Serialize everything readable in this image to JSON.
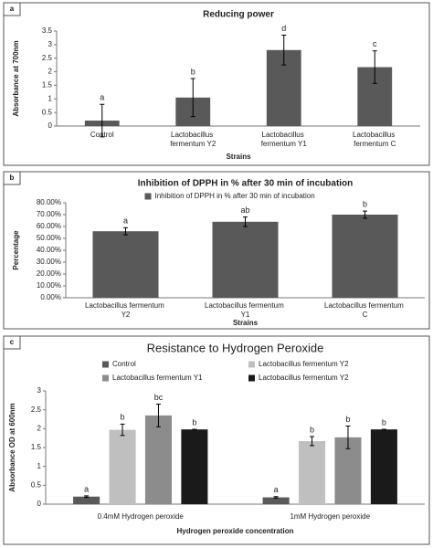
{
  "chart_data": [
    {
      "type": "bar",
      "panel_label": "a",
      "title": "Reducing power",
      "y_label": "Absorbance at 700nm",
      "x_label": "Strains",
      "categories": [
        "Control",
        "Lactobacillus fermentum Y2",
        "Lactobacillus fermentum Y1",
        "Lactobacillus fermentum C"
      ],
      "series": [
        {
          "color": "#595959",
          "values": [
            0.2,
            1.05,
            2.8,
            2.17
          ],
          "errors": [
            0.6,
            0.7,
            0.55,
            0.6
          ],
          "significance": [
            "a",
            "b",
            "d",
            "c"
          ]
        }
      ],
      "ylim": [
        0,
        3.5
      ],
      "yticks": [
        0,
        0.5,
        1,
        1.5,
        2,
        2.5,
        3,
        3.5
      ],
      "grid": false
    },
    {
      "type": "bar",
      "panel_label": "b",
      "title": "Inhibition of DPPH in % after 30 min of incubation",
      "y_label": "Percentage",
      "x_label": "Strains",
      "categories": [
        "Lactobacillus fermentum Y2",
        "Lactobacillus fermentum Y1",
        "Lactobacillus fermentum C"
      ],
      "series": [
        {
          "name": "Inhibition of DPPH in % after 30 min of incubation",
          "color": "#595959",
          "values": [
            56,
            64,
            70
          ],
          "errors": [
            3,
            4,
            3
          ],
          "significance": [
            "a",
            "ab",
            "b"
          ]
        }
      ],
      "ylim": [
        0,
        80
      ],
      "yticks": [
        {
          "value": 0,
          "label": "0.00%"
        },
        {
          "value": 10,
          "label": "10.00%"
        },
        {
          "value": 20,
          "label": "20.00%"
        },
        {
          "value": 30,
          "label": "30.00%"
        },
        {
          "value": 40,
          "label": "40.00%"
        },
        {
          "value": 50,
          "label": "50.00%"
        },
        {
          "value": 60,
          "label": "60.00%"
        },
        {
          "value": 70,
          "label": "70.00%"
        },
        {
          "value": 80,
          "label": "80.00%"
        }
      ],
      "grid": false,
      "legend": "top"
    },
    {
      "type": "bar",
      "panel_label": "c",
      "title": "Resistance to Hydrogen Peroxide",
      "y_label": "Absorbance OD at 600nm",
      "x_label": "Hydrogen peroxide concentration",
      "categories": [
        "0.4mM Hydrogen peroxide",
        "1mM Hydrogen peroxide"
      ],
      "series": [
        {
          "name": "Control",
          "color": "#595959",
          "values": [
            0.2,
            0.18
          ],
          "errors": [
            0.02,
            0.02
          ],
          "significance": [
            "a",
            "a"
          ]
        },
        {
          "name": "Lactobacillus fermentum Y2",
          "color": "#bfbfbf",
          "values": [
            1.97,
            1.67
          ],
          "errors": [
            0.15,
            0.12
          ],
          "significance": [
            "b",
            "b"
          ]
        },
        {
          "name": "Lactobacillus fermentum Y1",
          "color": "#8c8c8c",
          "values": [
            2.35,
            1.77
          ],
          "errors": [
            0.3,
            0.3
          ],
          "significance": [
            "bc",
            "b"
          ]
        },
        {
          "name": "Lactobacillus fermentum Y2",
          "color": "#1a1a1a",
          "values": [
            1.98,
            1.98
          ],
          "errors": [
            0,
            0
          ],
          "significance": [
            "b",
            "b"
          ]
        }
      ],
      "ylim": [
        0,
        3
      ],
      "yticks": [
        0,
        0.5,
        1,
        1.5,
        2,
        2.5,
        3
      ],
      "grid": false,
      "legend": "top"
    }
  ]
}
